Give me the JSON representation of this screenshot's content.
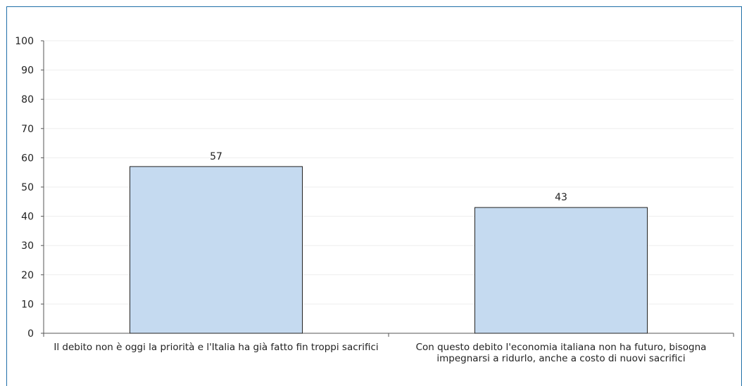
{
  "chart_data": {
    "type": "bar",
    "title": "",
    "xlabel": "",
    "ylabel": "",
    "ylim": [
      0,
      100
    ],
    "yticks": [
      0,
      10,
      20,
      30,
      40,
      50,
      60,
      70,
      80,
      90,
      100
    ],
    "grid": true,
    "legend": "none",
    "categories": [
      "Il debito non è oggi la priorità e l'Italia ha già fatto fin troppi sacrifici",
      "Con questo debito l'economia italiana non ha futuro, bisogna impegnarsi  a ridurlo, anche a costo di nuovi sacrifici"
    ],
    "values": [
      57,
      43
    ],
    "data_labels": [
      "57",
      "43"
    ],
    "colors": {
      "bar_fill": "#c5daf0",
      "bar_stroke": "#222222",
      "grid": "#eeeeee",
      "axis": "#555555",
      "frame": "#1f6fa8"
    }
  }
}
